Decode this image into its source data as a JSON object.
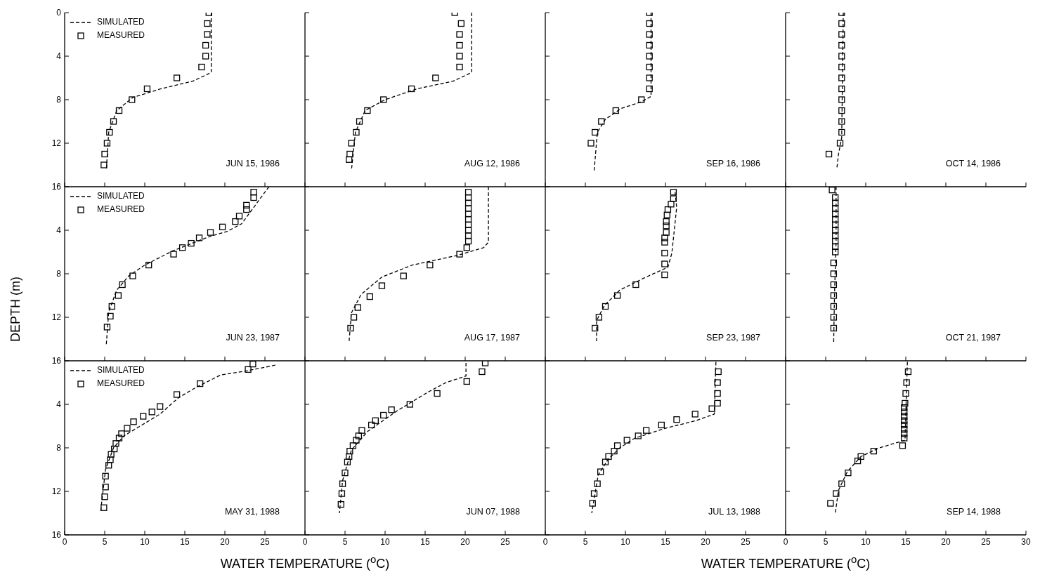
{
  "chart_data": [
    {
      "type": "line",
      "annotations": [
        "JUN 15, 1986"
      ],
      "legend": "top left",
      "tick_labels": "y",
      "xlim": [
        0,
        30
      ],
      "ylim": [
        16,
        0
      ],
      "xticks": [
        0,
        5,
        10,
        15,
        20,
        25
      ],
      "yticks": [
        0,
        4,
        8,
        12,
        16
      ],
      "series": [
        {
          "name": "SIMULATED",
          "type": "line",
          "color": "#000000",
          "line_style": "dashed",
          "marker": "none",
          "x": [
            18.3,
            18.3,
            16,
            12,
            8.5,
            6.5,
            5.5,
            5.2
          ],
          "values": [
            0,
            5.5,
            6.3,
            7,
            7.8,
            9,
            11,
            14.5
          ]
        },
        {
          "name": "MEASURED",
          "type": "scatter",
          "color": "#000000",
          "marker": "square",
          "x": [
            18,
            17.8,
            17.8,
            17.6,
            17.6,
            17.1,
            14,
            10.3,
            8.4,
            6.8,
            6.1,
            5.6,
            5.3,
            5,
            4.9
          ],
          "values": [
            0,
            1,
            2,
            3,
            4,
            5,
            6,
            7,
            8,
            9,
            10,
            11,
            12,
            13,
            14
          ]
        }
      ]
    },
    {
      "type": "line",
      "annotations": [
        "AUG 12, 1986"
      ],
      "tick_labels": false,
      "xlim": [
        0,
        30
      ],
      "ylim": [
        16,
        0
      ],
      "xticks": [
        0,
        5,
        10,
        15,
        20,
        25
      ],
      "yticks": [
        0,
        4,
        8,
        12,
        16
      ],
      "series": [
        {
          "type": "line",
          "color": "#000000",
          "line_style": "dashed",
          "marker": "none",
          "x": [
            20.8,
            20.8,
            18.5,
            14,
            10,
            7.5,
            6.3,
            5.8
          ],
          "values": [
            0,
            5.5,
            6.3,
            7,
            8,
            9,
            11,
            14.5
          ]
        },
        {
          "type": "scatter",
          "color": "#000000",
          "marker": "square",
          "x": [
            18.7,
            19.5,
            19.3,
            19.3,
            19.3,
            19.3,
            16.3,
            13.3,
            9.8,
            7.8,
            6.8,
            6.4,
            5.8,
            5.6,
            5.5
          ],
          "values": [
            0,
            1,
            2,
            3,
            4,
            5,
            6,
            7,
            8,
            9,
            10,
            11,
            12,
            13,
            13.5
          ]
        }
      ]
    },
    {
      "type": "line",
      "annotations": [
        "SEP 16, 1986"
      ],
      "tick_labels": false,
      "xlim": [
        0,
        30
      ],
      "ylim": [
        16,
        0
      ],
      "xticks": [
        0,
        5,
        10,
        15,
        20,
        25
      ],
      "yticks": [
        0,
        4,
        8,
        12,
        16
      ],
      "series": [
        {
          "type": "line",
          "color": "#000000",
          "line_style": "dashed",
          "marker": "none",
          "x": [
            13.2,
            13.2,
            12,
            9.5,
            7.5,
            6.5,
            6.1
          ],
          "values": [
            0,
            7.7,
            8.2,
            8.8,
            9.8,
            11,
            14.5
          ]
        },
        {
          "type": "scatter",
          "color": "#000000",
          "marker": "square",
          "x": [
            13,
            13,
            13,
            13,
            13,
            13,
            13,
            13,
            12,
            8.8,
            7,
            6.2,
            5.7
          ],
          "values": [
            0,
            1,
            2,
            3,
            4,
            5,
            6,
            7,
            8,
            9,
            10,
            11,
            12
          ]
        }
      ]
    },
    {
      "type": "line",
      "annotations": [
        "OCT 14, 1986"
      ],
      "tick_labels": false,
      "xlim": [
        0,
        30
      ],
      "ylim": [
        16,
        0
      ],
      "xticks": [
        0,
        5,
        10,
        15,
        20,
        25,
        30
      ],
      "yticks": [
        0,
        4,
        8,
        12,
        16
      ],
      "series": [
        {
          "type": "line",
          "color": "#000000",
          "line_style": "dashed",
          "marker": "none",
          "x": [
            7.2,
            7,
            6.6,
            6.4
          ],
          "values": [
            0,
            11.5,
            13,
            14.3
          ]
        },
        {
          "type": "scatter",
          "color": "#000000",
          "marker": "square",
          "x": [
            7,
            7,
            7,
            7,
            7,
            7,
            7,
            7,
            7,
            7,
            7,
            7,
            6.8,
            5.4
          ],
          "values": [
            0,
            1,
            2,
            3,
            4,
            5,
            6,
            7,
            8,
            9,
            10,
            11,
            12,
            13
          ]
        }
      ]
    },
    {
      "type": "line",
      "annotations": [
        "JUN 23, 1987"
      ],
      "ylabel": "DEPTH (m)",
      "legend": "top left",
      "tick_labels": "y",
      "xlim": [
        0,
        30
      ],
      "ylim": [
        16,
        0
      ],
      "xticks": [
        0,
        5,
        10,
        15,
        20,
        25
      ],
      "yticks": [
        4,
        8,
        12,
        16
      ],
      "series": [
        {
          "name": "SIMULATED",
          "type": "line",
          "color": "#000000",
          "line_style": "dashed",
          "marker": "none",
          "x": [
            25.5,
            23,
            22.1,
            20.3,
            18,
            13.5,
            10,
            8,
            6.5,
            5.5,
            5.2
          ],
          "values": [
            0,
            2.5,
            3.4,
            4.1,
            4.6,
            5.9,
            7.2,
            8.2,
            9.5,
            11.5,
            14.5
          ]
        },
        {
          "name": "MEASURED",
          "type": "scatter",
          "color": "#000000",
          "marker": "square",
          "x": [
            23.6,
            23.6,
            22.7,
            22.7,
            21.8,
            21.3,
            19.7,
            18.2,
            16.8,
            15.8,
            14.7,
            13.6,
            10.5,
            8.5,
            7.2,
            6.7,
            5.9,
            5.7,
            5.3
          ],
          "values": [
            0.5,
            1,
            1.7,
            2.1,
            2.7,
            3.2,
            3.7,
            4.2,
            4.7,
            5.2,
            5.6,
            6.2,
            7.2,
            8.2,
            9,
            10,
            11,
            11.9,
            12.9
          ]
        }
      ]
    },
    {
      "type": "line",
      "annotations": [
        "AUG 17, 1987"
      ],
      "tick_labels": false,
      "xlim": [
        0,
        30
      ],
      "ylim": [
        16,
        0
      ],
      "xticks": [
        0,
        5,
        10,
        15,
        20,
        25
      ],
      "yticks": [
        4,
        8,
        12,
        16
      ],
      "series": [
        {
          "type": "line",
          "color": "#000000",
          "line_style": "dashed",
          "marker": "none",
          "x": [
            22.9,
            22.9,
            22.3,
            19.1,
            13.4,
            9.6,
            7,
            5.8,
            5.5
          ],
          "values": [
            0,
            5.1,
            5.6,
            6.3,
            7.2,
            8.3,
            9.9,
            11.6,
            14.3
          ]
        },
        {
          "type": "scatter",
          "color": "#000000",
          "marker": "square",
          "x": [
            20.4,
            20.4,
            20.4,
            20.4,
            20.4,
            20.4,
            20.4,
            20.4,
            20.4,
            20.4,
            20.2,
            19.3,
            15.6,
            12.3,
            9.6,
            8.1,
            6.6,
            6.1,
            5.7
          ],
          "values": [
            0.5,
            1,
            1.5,
            2,
            2.5,
            3,
            3.5,
            4,
            4.5,
            5,
            5.6,
            6.2,
            7.2,
            8.2,
            9.1,
            10.1,
            11.1,
            12,
            13
          ]
        }
      ]
    },
    {
      "type": "line",
      "annotations": [
        "SEP 23, 1987"
      ],
      "tick_labels": false,
      "xlim": [
        0,
        30
      ],
      "ylim": [
        16,
        0
      ],
      "xticks": [
        0,
        5,
        10,
        15,
        20,
        25
      ],
      "yticks": [
        4,
        8,
        12,
        16
      ],
      "series": [
        {
          "type": "line",
          "color": "#000000",
          "line_style": "dashed",
          "marker": "none",
          "x": [
            16.2,
            16.4,
            15.8,
            15.3,
            12.3,
            9.3,
            7.4,
            6.4,
            6.4
          ],
          "values": [
            0.5,
            1.9,
            6.1,
            7.4,
            8.4,
            9.5,
            10.9,
            12.3,
            14.2
          ]
        },
        {
          "type": "scatter",
          "color": "#000000",
          "marker": "square",
          "x": [
            16,
            16,
            15.7,
            15.3,
            15.2,
            15.1,
            15.1,
            15.1,
            14.9,
            14.9,
            14.9,
            14.9,
            14.9,
            11.3,
            9,
            7.5,
            6.7,
            6.2
          ],
          "values": [
            0.5,
            1.1,
            1.6,
            2.1,
            2.6,
            3.2,
            3.6,
            4.2,
            4.7,
            5.1,
            6.1,
            7.1,
            8.1,
            9,
            10,
            11,
            12,
            13
          ]
        }
      ]
    },
    {
      "type": "line",
      "annotations": [
        "OCT 21, 1987"
      ],
      "tick_labels": false,
      "xlim": [
        0,
        30
      ],
      "ylim": [
        16,
        0
      ],
      "xticks": [
        0,
        5,
        10,
        15,
        20,
        25,
        30
      ],
      "yticks": [
        4,
        8,
        12,
        16
      ],
      "series": [
        {
          "type": "line",
          "color": "#000000",
          "line_style": "dashed",
          "marker": "none",
          "x": [
            6.3,
            6.3,
            6.1,
            6
          ],
          "values": [
            0,
            5,
            10,
            14.3
          ]
        },
        {
          "type": "scatter",
          "color": "#000000",
          "marker": "square",
          "x": [
            5.8,
            6.2,
            6.2,
            6.2,
            6.2,
            6.2,
            6.2,
            6.2,
            6.2,
            6.2,
            6.2,
            6.2,
            6,
            6,
            6,
            6,
            6,
            6,
            6
          ],
          "values": [
            0.3,
            1,
            1.5,
            2,
            2.5,
            3,
            3.5,
            4,
            4.5,
            5,
            5.5,
            6,
            7,
            8,
            9,
            10,
            11,
            12,
            13
          ]
        }
      ]
    },
    {
      "type": "line",
      "annotations": [
        "MAY 31, 1988"
      ],
      "xlabel": "WATER TEMPERATURE ($^{o}$C)",
      "legend": "top left",
      "xlim": [
        0,
        30
      ],
      "ylim": [
        16,
        0
      ],
      "xticks": [
        0,
        5,
        10,
        15,
        20,
        25
      ],
      "yticks": [
        4,
        8,
        12,
        16
      ],
      "series": [
        {
          "name": "SIMULATED",
          "type": "line",
          "color": "#000000",
          "line_style": "dashed",
          "marker": "none",
          "x": [
            26.3,
            22.9,
            19.5,
            17.6,
            16.5,
            14.2,
            11.9,
            7.4,
            6.1,
            5.1,
            4.5
          ],
          "values": [
            0.4,
            0.9,
            1.3,
            2,
            2.4,
            3.4,
            4.9,
            6.9,
            8,
            10,
            13.8
          ]
        },
        {
          "name": "MEASURED",
          "type": "scatter",
          "color": "#000000",
          "marker": "square",
          "x": [
            23.5,
            22.9,
            16.9,
            14,
            11.9,
            10.9,
            9.8,
            8.6,
            7.8,
            7.1,
            6.8,
            6.4,
            6.2,
            5.8,
            5.7,
            5.5,
            5.1,
            5.1,
            5,
            4.9
          ],
          "values": [
            0.3,
            0.8,
            2.1,
            3.1,
            4.2,
            4.7,
            5.1,
            5.6,
            6.2,
            6.7,
            7.1,
            7.6,
            8.1,
            8.6,
            9.1,
            9.6,
            10.6,
            11.6,
            12.5,
            13.5
          ]
        }
      ]
    },
    {
      "type": "line",
      "annotations": [
        "JUN 07, 1988"
      ],
      "tick_labels": "x",
      "xlim": [
        0,
        30
      ],
      "ylim": [
        16,
        0
      ],
      "xticks": [
        0,
        5,
        10,
        15,
        20,
        25
      ],
      "yticks": [
        4,
        8,
        12,
        16
      ],
      "series": [
        {
          "type": "line",
          "color": "#000000",
          "line_style": "dashed",
          "marker": "none",
          "x": [
            20.1,
            20.1,
            17.6,
            15.3,
            11.5,
            7.8,
            5.8,
            4.7,
            4.3
          ],
          "values": [
            0.2,
            1.4,
            2,
            2.9,
            4.6,
            6.5,
            8.2,
            11,
            14
          ]
        },
        {
          "type": "scatter",
          "color": "#000000",
          "marker": "square",
          "x": [
            22.5,
            22.1,
            20.2,
            16.5,
            13.1,
            10.8,
            9.8,
            8.8,
            8.3,
            7.1,
            6.7,
            6.4,
            6,
            5.6,
            5.5,
            5.3,
            5,
            4.7,
            4.6,
            4.5
          ],
          "values": [
            0.2,
            1,
            1.9,
            3,
            4,
            4.5,
            5,
            5.5,
            5.9,
            6.4,
            6.9,
            7.3,
            7.8,
            8.3,
            8.8,
            9.3,
            10.3,
            11.3,
            12.2,
            13.2
          ]
        }
      ]
    },
    {
      "type": "line",
      "annotations": [
        "JUL 13, 1988"
      ],
      "xlabel": "WATER TEMPERATURE ($^{o}$C)",
      "tick_labels": "x",
      "xlim": [
        0,
        30
      ],
      "ylim": [
        16,
        0
      ],
      "xticks": [
        0,
        5,
        10,
        15,
        20,
        25
      ],
      "yticks": [
        4,
        8,
        12,
        16
      ],
      "series": [
        {
          "type": "line",
          "color": "#000000",
          "line_style": "dashed",
          "marker": "none",
          "x": [
            21.3,
            21.1,
            18.8,
            15,
            11.2,
            9.3,
            7.8,
            6.6,
            5.8
          ],
          "values": [
            0.1,
            4.9,
            5.5,
            6.2,
            7.1,
            8,
            9.1,
            10.5,
            14
          ]
        },
        {
          "type": "scatter",
          "color": "#000000",
          "marker": "square",
          "x": [
            21.6,
            21.5,
            21.5,
            21.5,
            20.8,
            18.7,
            16.4,
            14.5,
            12.6,
            11.6,
            10.2,
            9,
            8.6,
            7.9,
            7.5,
            6.9,
            6.5,
            6.1,
            5.9
          ],
          "values": [
            1,
            2,
            3,
            3.9,
            4.4,
            4.9,
            5.4,
            5.9,
            6.4,
            6.9,
            7.3,
            7.8,
            8.3,
            8.8,
            9.3,
            10.2,
            11.3,
            12.2,
            13.1
          ]
        }
      ]
    },
    {
      "type": "line",
      "annotations": [
        "SEP 14, 1988"
      ],
      "tick_labels": "x",
      "xlim": [
        0,
        30
      ],
      "ylim": [
        16,
        0
      ],
      "xticks": [
        0,
        5,
        10,
        15,
        20,
        25,
        30
      ],
      "yticks": [
        4,
        8,
        12,
        16
      ],
      "series": [
        {
          "type": "line",
          "color": "#000000",
          "line_style": "dashed",
          "marker": "none",
          "x": [
            15.2,
            14.9,
            11.7,
            9.4,
            7.7,
            6.6,
            6.2
          ],
          "values": [
            0.1,
            7.3,
            8,
            8.8,
            10.2,
            11.9,
            14
          ]
        },
        {
          "type": "scatter",
          "color": "#000000",
          "marker": "square",
          "x": [
            15.3,
            15.1,
            15,
            14.9,
            14.8,
            14.8,
            14.8,
            14.8,
            14.8,
            14.8,
            14.8,
            14.8,
            14.6,
            11,
            9.4,
            9,
            7.8,
            7,
            6.3,
            5.6
          ],
          "values": [
            1,
            2,
            3,
            3.9,
            4.3,
            4.7,
            5.1,
            5.5,
            5.9,
            6.3,
            6.7,
            7.1,
            7.8,
            8.3,
            8.8,
            9.2,
            10.3,
            11.3,
            12.2,
            13.1
          ]
        }
      ]
    }
  ]
}
